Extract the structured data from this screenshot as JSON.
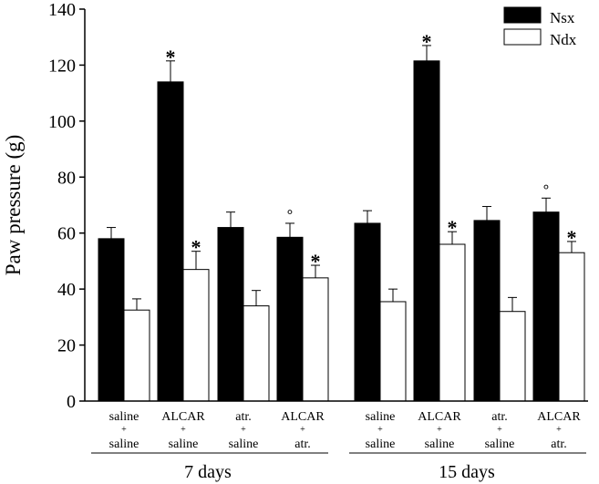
{
  "chart_data": {
    "type": "bar",
    "ylabel": "Paw pressure (g)",
    "ylim": [
      0,
      140
    ],
    "yticks": [
      0,
      20,
      40,
      60,
      80,
      100,
      120,
      140
    ],
    "legend": {
      "position": "top-right"
    },
    "series": [
      {
        "name": "Nsx",
        "color": "#000000",
        "values": [
          58,
          114,
          62,
          58.5,
          63.5,
          121.5,
          64.5,
          67.5
        ],
        "errors": [
          4,
          7.5,
          5.5,
          5,
          4.5,
          5.5,
          5,
          5
        ]
      },
      {
        "name": "Ndx",
        "color": "#ffffff",
        "values": [
          32.5,
          47,
          34,
          44,
          35.5,
          56,
          32,
          53
        ],
        "errors": [
          4,
          6.5,
          5.5,
          4.5,
          4.5,
          4.5,
          5,
          4
        ]
      }
    ],
    "categories": [
      {
        "top": "saline",
        "plus": "+",
        "bottom": "saline"
      },
      {
        "top": "ALCAR",
        "plus": "+",
        "bottom": "saline"
      },
      {
        "top": "atr.",
        "plus": "+",
        "bottom": "saline"
      },
      {
        "top": "ALCAR",
        "plus": "+",
        "bottom": "atr."
      },
      {
        "top": "saline",
        "plus": "+",
        "bottom": "saline"
      },
      {
        "top": "ALCAR",
        "plus": "+",
        "bottom": "saline"
      },
      {
        "top": "atr.",
        "plus": "+",
        "bottom": "saline"
      },
      {
        "top": "ALCAR",
        "plus": "+",
        "bottom": "atr."
      }
    ],
    "groups": [
      "7 days",
      "15 days"
    ],
    "annotations": [
      {
        "category": 1,
        "series": 0,
        "text": "*"
      },
      {
        "category": 1,
        "series": 1,
        "text": "*"
      },
      {
        "category": 3,
        "series": 0,
        "text": "°"
      },
      {
        "category": 3,
        "series": 1,
        "text": "*"
      },
      {
        "category": 5,
        "series": 0,
        "text": "*"
      },
      {
        "category": 5,
        "series": 1,
        "text": "*"
      },
      {
        "category": 7,
        "series": 0,
        "text": "°"
      },
      {
        "category": 7,
        "series": 1,
        "text": "*"
      }
    ]
  }
}
